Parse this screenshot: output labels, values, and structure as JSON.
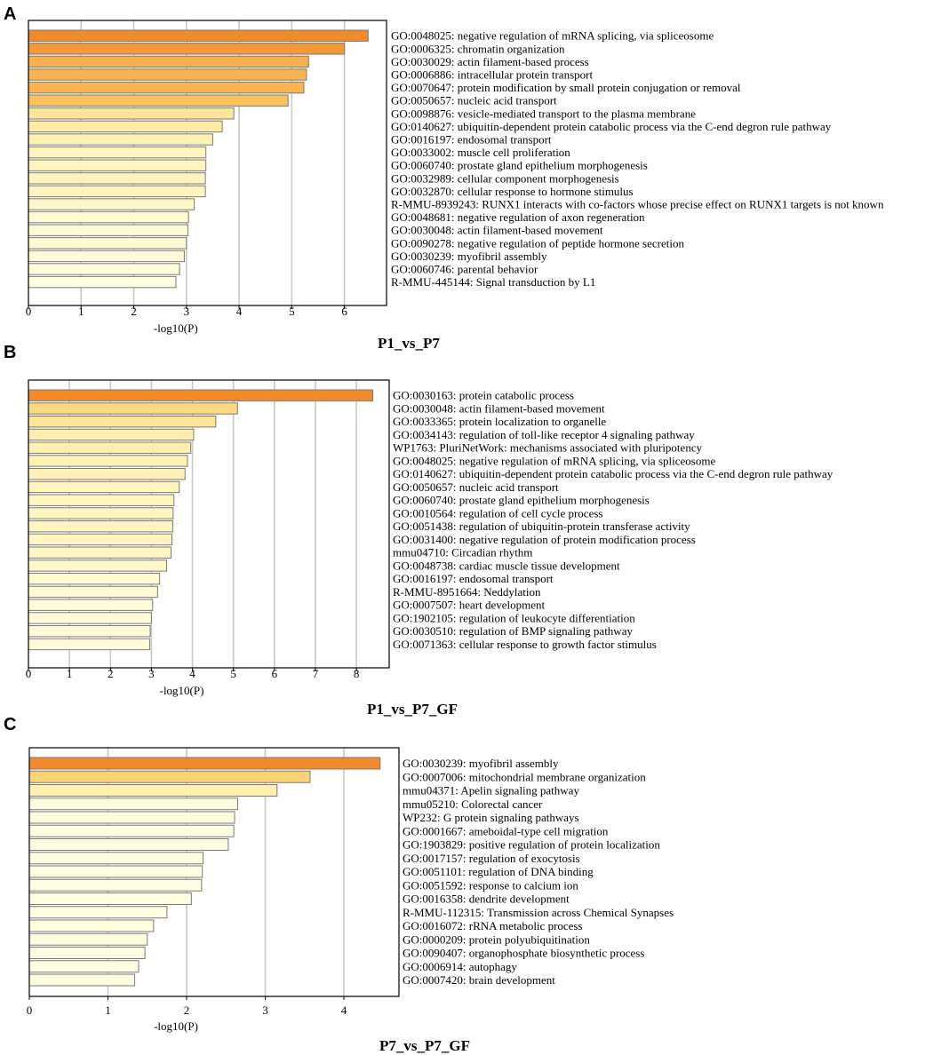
{
  "chart_data": [
    {
      "type": "bar",
      "orientation": "horizontal",
      "panel": "A",
      "title": "P1_vs_P7",
      "xlabel": "-log10(P)",
      "ylabel": "",
      "xlim": [
        0,
        6.8
      ],
      "xticks": [
        0,
        1,
        2,
        3,
        4,
        5,
        6
      ],
      "grid": "vertical",
      "categories": [
        "GO:0048025: negative regulation of mRNA splicing, via spliceosome",
        "GO:0006325: chromatin organization",
        "GO:0030029: actin filament-based process",
        "GO:0006886: intracellular protein transport",
        "GO:0070647: protein modification by small protein conjugation or removal",
        "GO:0050657: nucleic acid transport",
        "GO:0098876: vesicle-mediated transport to the plasma membrane",
        "GO:0140627: ubiquitin-dependent protein catabolic process via the C-end degron rule pathway",
        "GO:0016197: endosomal transport",
        "GO:0033002: muscle cell proliferation",
        "GO:0060740: prostate gland epithelium morphogenesis",
        "GO:0032989: cellular component morphogenesis",
        "GO:0032870: cellular response to hormone stimulus",
        "R-MMU-8939243: RUNX1 interacts with co-factors whose precise effect on RUNX1 targets is not known",
        "GO:0048681: negative regulation of axon regeneration",
        "GO:0030048: actin filament-based movement",
        "GO:0090278: negative regulation of peptide hormone secretion",
        "GO:0030239: myofibril assembly",
        "GO:0060746: parental behavior",
        "R-MMU-445144: Signal transduction by L1"
      ],
      "values": [
        6.45,
        6.0,
        5.32,
        5.28,
        5.23,
        4.93,
        3.9,
        3.68,
        3.5,
        3.37,
        3.37,
        3.36,
        3.36,
        3.15,
        3.04,
        3.03,
        3.0,
        2.96,
        2.87,
        2.8
      ]
    },
    {
      "type": "bar",
      "orientation": "horizontal",
      "panel": "B",
      "title": "P1_vs_P7_GF",
      "xlabel": "-log10(P)",
      "ylabel": "",
      "xlim": [
        0,
        8.8
      ],
      "xticks": [
        0,
        1,
        2,
        3,
        4,
        5,
        6,
        7,
        8
      ],
      "grid": "vertical",
      "categories": [
        "GO:0030163: protein catabolic process",
        "GO:0030048: actin filament-based movement",
        "GO:0033365: protein localization to organelle",
        "GO:0034143: regulation of toll-like receptor 4 signaling pathway",
        "WP1763: PluriNetWork: mechanisms associated with pluripotency",
        "GO:0048025: negative regulation of mRNA splicing, via spliceosome",
        "GO:0140627: ubiquitin-dependent protein catabolic process via the C-end degron rule pathway",
        "GO:0050657: nucleic acid transport",
        "GO:0060740: prostate gland epithelium morphogenesis",
        "GO:0010564: regulation of cell cycle process",
        "GO:0051438: regulation of ubiquitin-protein transferase activity",
        "GO:0031400: negative regulation of protein modification process",
        "mmu04710: Circadian rhythm",
        "GO:0048738: cardiac muscle tissue development",
        "GO:0016197: endosomal transport",
        "R-MMU-8951664: Neddylation",
        "GO:0007507: heart development",
        "GO:1902105: regulation of leukocyte differentiation",
        "GO:0030510: regulation of BMP signaling pathway",
        "GO:0071363: cellular response to growth factor stimulus"
      ],
      "values": [
        8.4,
        5.1,
        4.57,
        4.03,
        3.96,
        3.88,
        3.82,
        3.68,
        3.55,
        3.53,
        3.52,
        3.5,
        3.48,
        3.37,
        3.2,
        3.15,
        3.03,
        3.0,
        2.97,
        2.96
      ]
    },
    {
      "type": "bar",
      "orientation": "horizontal",
      "panel": "C",
      "title": "P7_vs_P7_GF",
      "xlabel": "-log10(P)",
      "ylabel": "",
      "xlim": [
        0,
        4.7
      ],
      "xticks": [
        0,
        1,
        2,
        3,
        4
      ],
      "grid": "vertical",
      "categories": [
        "GO:0030239: myofibril assembly",
        "GO:0007006: mitochondrial membrane organization",
        "mmu04371: Apelin signaling pathway",
        "mmu05210: Colorectal cancer",
        "WP232: G protein signaling pathways",
        "GO:0001667: ameboidal-type cell migration",
        "GO:1903829: positive regulation of protein localization",
        "GO:0017157: regulation of exocytosis",
        "GO:0051101: regulation of DNA binding",
        "GO:0051592: response to calcium ion",
        "GO:0016358: dendrite development",
        "R-MMU-112315: Transmission across Chemical Synapses",
        "GO:0016072: rRNA metabolic process",
        "GO:0000209: protein polyubiquitination",
        "GO:0090407: organophosphate biosynthetic process",
        "GO:0006914: autophagy",
        "GO:0007420: brain development"
      ],
      "values": [
        4.46,
        3.57,
        3.15,
        2.65,
        2.61,
        2.6,
        2.53,
        2.21,
        2.2,
        2.19,
        2.06,
        1.75,
        1.58,
        1.5,
        1.47,
        1.39,
        1.34
      ]
    }
  ],
  "colors": {
    "bar_stroke": "#7a7a7a",
    "grid": "#c8c8c8",
    "frame": "#000000",
    "bar_scale": [
      "#fffde0",
      "#fff1b0",
      "#fddc7e",
      "#fbbf56",
      "#f7a03d",
      "#f28a2a"
    ]
  }
}
